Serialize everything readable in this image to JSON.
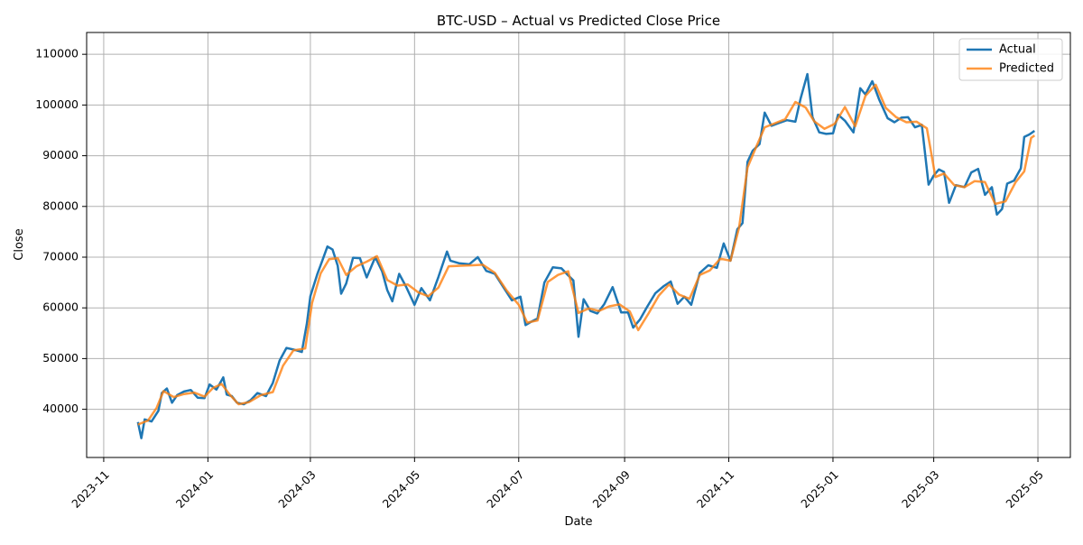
{
  "chart_data": {
    "type": "line",
    "title": "BTC-USD – Actual vs Predicted Close Price",
    "xlabel": "Date",
    "ylabel": "Close",
    "xlim": [
      "2023-10-22",
      "2025-05-20"
    ],
    "ylim": [
      30500,
      114300
    ],
    "grid": true,
    "legend_position": "top-right",
    "x_tick_labels": [
      "2023-11",
      "2024-01",
      "2024-03",
      "2024-05",
      "2024-07",
      "2024-09",
      "2024-11",
      "2025-01",
      "2025-03",
      "2025-05"
    ],
    "x_ticks": [
      "2023-11-01",
      "2024-01-01",
      "2024-03-01",
      "2024-05-01",
      "2024-07-01",
      "2024-09-01",
      "2024-11-01",
      "2025-01-01",
      "2025-03-01",
      "2025-05-01"
    ],
    "y_ticks": [
      40000,
      50000,
      60000,
      70000,
      80000,
      90000,
      100000,
      110000
    ],
    "y_tick_labels": [
      "40000",
      "50000",
      "60000",
      "70000",
      "80000",
      "90000",
      "100000",
      "110000"
    ],
    "colors": {
      "actual": "#1f77b4",
      "predicted": "#ff7f0e",
      "grid": "#b0b0b0"
    },
    "series": [
      {
        "name": "Actual",
        "x": [
          "2023-11-21",
          "2023-11-23",
          "2023-11-25",
          "2023-11-29",
          "2023-12-03",
          "2023-12-05",
          "2023-12-08",
          "2023-12-11",
          "2023-12-14",
          "2023-12-18",
          "2023-12-22",
          "2023-12-26",
          "2023-12-30",
          "2024-01-02",
          "2024-01-06",
          "2024-01-10",
          "2024-01-12",
          "2024-01-15",
          "2024-01-18",
          "2024-01-22",
          "2024-01-26",
          "2024-01-30",
          "2024-02-04",
          "2024-02-08",
          "2024-02-12",
          "2024-02-16",
          "2024-02-20",
          "2024-02-25",
          "2024-02-28",
          "2024-03-01",
          "2024-03-05",
          "2024-03-08",
          "2024-03-11",
          "2024-03-14",
          "2024-03-17",
          "2024-03-19",
          "2024-03-22",
          "2024-03-26",
          "2024-03-30",
          "2024-04-03",
          "2024-04-08",
          "2024-04-12",
          "2024-04-15",
          "2024-04-18",
          "2024-04-22",
          "2024-04-26",
          "2024-05-01",
          "2024-05-05",
          "2024-05-10",
          "2024-05-15",
          "2024-05-20",
          "2024-05-22",
          "2024-05-27",
          "2024-06-02",
          "2024-06-07",
          "2024-06-12",
          "2024-06-17",
          "2024-06-22",
          "2024-06-27",
          "2024-07-02",
          "2024-07-05",
          "2024-07-08",
          "2024-07-12",
          "2024-07-16",
          "2024-07-21",
          "2024-07-26",
          "2024-07-30",
          "2024-08-02",
          "2024-08-05",
          "2024-08-08",
          "2024-08-12",
          "2024-08-16",
          "2024-08-20",
          "2024-08-25",
          "2024-08-30",
          "2024-09-03",
          "2024-09-06",
          "2024-09-10",
          "2024-09-14",
          "2024-09-19",
          "2024-09-24",
          "2024-09-28",
          "2024-10-02",
          "2024-10-06",
          "2024-10-10",
          "2024-10-15",
          "2024-10-20",
          "2024-10-25",
          "2024-10-29",
          "2024-11-02",
          "2024-11-06",
          "2024-11-09",
          "2024-11-12",
          "2024-11-15",
          "2024-11-19",
          "2024-11-22",
          "2024-11-26",
          "2024-11-30",
          "2024-12-05",
          "2024-12-10",
          "2024-12-13",
          "2024-12-17",
          "2024-12-20",
          "2024-12-24",
          "2024-12-28",
          "2025-01-01",
          "2025-01-04",
          "2025-01-08",
          "2025-01-13",
          "2025-01-17",
          "2025-01-20",
          "2025-01-24",
          "2025-01-28",
          "2025-02-02",
          "2025-02-06",
          "2025-02-10",
          "2025-02-14",
          "2025-02-18",
          "2025-02-22",
          "2025-02-26",
          "2025-03-01",
          "2025-03-04",
          "2025-03-07",
          "2025-03-10",
          "2025-03-14",
          "2025-03-19",
          "2025-03-23",
          "2025-03-27",
          "2025-03-31",
          "2025-04-04",
          "2025-04-07",
          "2025-04-10",
          "2025-04-13",
          "2025-04-17",
          "2025-04-21",
          "2025-04-23",
          "2025-04-26",
          "2025-04-29"
        ],
        "values": [
          37500,
          34300,
          38000,
          37600,
          39700,
          43200,
          44100,
          41300,
          42800,
          43500,
          43800,
          42300,
          42200,
          44900,
          43900,
          46300,
          42900,
          42600,
          41300,
          41000,
          41800,
          43200,
          42600,
          45200,
          49600,
          52100,
          51800,
          51300,
          57000,
          62300,
          66600,
          69300,
          72100,
          71500,
          68300,
          62800,
          64800,
          69900,
          69800,
          66000,
          70000,
          67200,
          63500,
          61300,
          66700,
          64200,
          60600,
          63900,
          61500,
          66100,
          71100,
          69300,
          68800,
          68600,
          70000,
          67300,
          66700,
          64100,
          61500,
          62200,
          56600,
          57200,
          57900,
          65000,
          68000,
          67800,
          66400,
          65400,
          54300,
          61700,
          59400,
          58900,
          60700,
          64100,
          59100,
          59100,
          56100,
          57700,
          60100,
          62900,
          64300,
          65200,
          60800,
          62200,
          60600,
          66900,
          68400,
          67900,
          72700,
          69300,
          75500,
          76700,
          88800,
          91000,
          92300,
          98500,
          95900,
          96400,
          97000,
          96700,
          101200,
          106100,
          97600,
          94600,
          94300,
          94400,
          98100,
          96900,
          94600,
          103300,
          102100,
          104700,
          101100,
          97400,
          96600,
          97500,
          97600,
          95600,
          96100,
          84300,
          86100,
          87300,
          86800,
          80700,
          84200,
          83800,
          86700,
          87400,
          82300,
          83800,
          78400,
          79500,
          84500,
          85100,
          87500,
          93700,
          94200,
          94900
        ]
      },
      {
        "name": "Predicted",
        "x": [
          "2023-11-21",
          "2023-11-27",
          "2023-12-02",
          "2023-12-06",
          "2023-12-12",
          "2023-12-18",
          "2023-12-24",
          "2023-12-30",
          "2024-01-04",
          "2024-01-09",
          "2024-01-14",
          "2024-01-19",
          "2024-01-25",
          "2024-02-01",
          "2024-02-08",
          "2024-02-14",
          "2024-02-20",
          "2024-02-27",
          "2024-03-02",
          "2024-03-07",
          "2024-03-12",
          "2024-03-17",
          "2024-03-22",
          "2024-03-28",
          "2024-04-03",
          "2024-04-09",
          "2024-04-15",
          "2024-04-21",
          "2024-04-27",
          "2024-05-03",
          "2024-05-09",
          "2024-05-15",
          "2024-05-21",
          "2024-05-28",
          "2024-06-04",
          "2024-06-10",
          "2024-06-17",
          "2024-06-24",
          "2024-07-01",
          "2024-07-06",
          "2024-07-12",
          "2024-07-18",
          "2024-07-24",
          "2024-07-30",
          "2024-08-05",
          "2024-08-11",
          "2024-08-17",
          "2024-08-23",
          "2024-08-29",
          "2024-09-04",
          "2024-09-09",
          "2024-09-15",
          "2024-09-21",
          "2024-09-27",
          "2024-10-03",
          "2024-10-09",
          "2024-10-15",
          "2024-10-21",
          "2024-10-27",
          "2024-11-02",
          "2024-11-07",
          "2024-11-12",
          "2024-11-17",
          "2024-11-22",
          "2024-11-28",
          "2024-12-04",
          "2024-12-10",
          "2024-12-16",
          "2024-12-21",
          "2024-12-27",
          "2025-01-02",
          "2025-01-08",
          "2025-01-14",
          "2025-01-20",
          "2025-01-26",
          "2025-02-01",
          "2025-02-07",
          "2025-02-13",
          "2025-02-19",
          "2025-02-25",
          "2025-03-02",
          "2025-03-07",
          "2025-03-13",
          "2025-03-19",
          "2025-03-25",
          "2025-03-31",
          "2025-04-06",
          "2025-04-12",
          "2025-04-18",
          "2025-04-23",
          "2025-04-27",
          "2025-04-29"
        ],
        "values": [
          37000,
          37800,
          40300,
          43600,
          42400,
          43000,
          43300,
          42500,
          44200,
          45000,
          42800,
          41000,
          41400,
          42800,
          43400,
          48600,
          51600,
          52000,
          61000,
          66800,
          69600,
          69800,
          66500,
          68200,
          69100,
          70200,
          65500,
          64400,
          64600,
          63100,
          62300,
          64000,
          68200,
          68300,
          68400,
          68500,
          66900,
          63400,
          60600,
          57100,
          57500,
          65100,
          66500,
          67200,
          59000,
          59900,
          59400,
          60300,
          60700,
          59300,
          55600,
          58900,
          62400,
          64600,
          62600,
          61800,
          66500,
          67400,
          69700,
          69300,
          75800,
          87700,
          91700,
          95600,
          96400,
          97200,
          100600,
          99500,
          96800,
          95300,
          96300,
          99600,
          95800,
          101800,
          104000,
          99400,
          97600,
          96600,
          96700,
          95400,
          85800,
          86500,
          84200,
          83800,
          85000,
          84800,
          80500,
          81000,
          84800,
          86900,
          93500,
          94000
        ]
      }
    ]
  }
}
